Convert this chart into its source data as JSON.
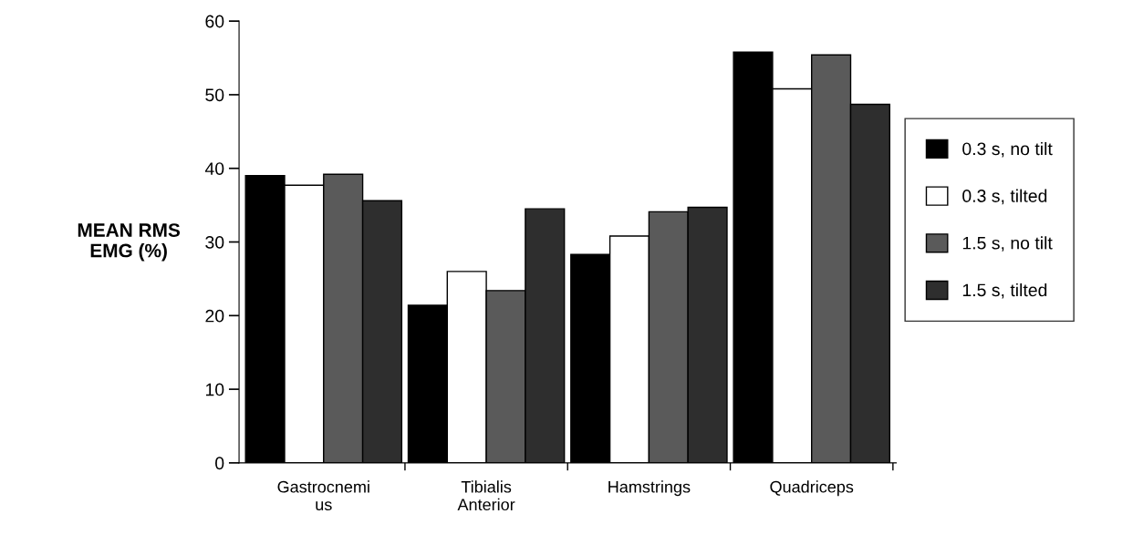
{
  "chart_data": {
    "type": "bar",
    "ylabel": "MEAN RMS\nEMG (%)",
    "categories": [
      "Gastrocnemi\nus",
      "Tibialis\nAnterior",
      "Hamstrings",
      "Quadriceps"
    ],
    "series": [
      {
        "name": "0.3 s, no tilt",
        "color": "#000000",
        "values": [
          39.0,
          21.4,
          28.3,
          55.8
        ]
      },
      {
        "name": "0.3 s, tilted",
        "color": "#ffffff",
        "values": [
          37.7,
          26.0,
          30.8,
          50.8
        ]
      },
      {
        "name": "1.5 s, no tilt",
        "color": "#5a5a5a",
        "values": [
          39.2,
          23.4,
          34.1,
          55.4
        ]
      },
      {
        "name": "1.5 s, tilted",
        "color": "#2e2e2e",
        "values": [
          35.6,
          34.5,
          34.7,
          48.7
        ]
      }
    ],
    "ylim": [
      0,
      60
    ],
    "yticks": [
      0,
      10,
      20,
      30,
      40,
      50,
      60
    ],
    "grid": false,
    "legend": "right"
  }
}
